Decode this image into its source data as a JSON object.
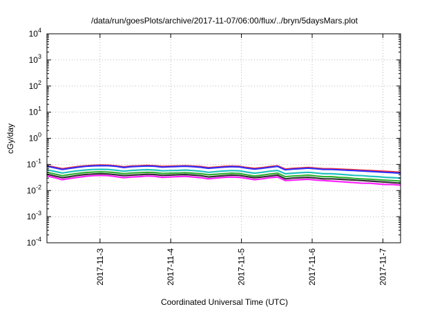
{
  "chart_data": {
    "type": "line",
    "title": "/data/run/goesPlots/archive/2017-11-07/06:00/flux/../bryn/5daysMars.plot",
    "xlabel": "Coordinated Universal Time (UTC)",
    "ylabel": "cGy/day",
    "yscale": "log",
    "ylim": [
      0.0001,
      10000
    ],
    "yticks": [
      {
        "value": 0.0001,
        "base": "10",
        "exp": "-4"
      },
      {
        "value": 0.001,
        "base": "10",
        "exp": "-3"
      },
      {
        "value": 0.01,
        "base": "10",
        "exp": "-2"
      },
      {
        "value": 0.1,
        "base": "10",
        "exp": "-1"
      },
      {
        "value": 1,
        "base": "10",
        "exp": "0"
      },
      {
        "value": 10,
        "base": "10",
        "exp": "1"
      },
      {
        "value": 100,
        "base": "10",
        "exp": "2"
      },
      {
        "value": 1000,
        "base": "10",
        "exp": "3"
      },
      {
        "value": 10000,
        "base": "10",
        "exp": "4"
      }
    ],
    "xlim": [
      "2017-11-02 06:00",
      "2017-11-07 06:00"
    ],
    "xticks": [
      "2017-11-3",
      "2017-11-4",
      "2017-11-5",
      "2017-11-6",
      "2017-11-7"
    ],
    "grid": true,
    "series": [
      {
        "color": "#ff2020",
        "values": [
          0.09,
          0.078,
          0.068,
          0.075,
          0.082,
          0.088,
          0.092,
          0.094,
          0.093,
          0.088,
          0.08,
          0.086,
          0.088,
          0.091,
          0.089,
          0.083,
          0.085,
          0.087,
          0.089,
          0.086,
          0.082,
          0.075,
          0.079,
          0.083,
          0.086,
          0.084,
          0.076,
          0.07,
          0.075,
          0.082,
          0.088,
          0.066,
          0.07,
          0.073,
          0.076,
          0.072,
          0.068,
          0.068,
          0.066,
          0.064,
          0.062,
          0.06,
          0.058,
          0.056,
          0.054,
          0.052,
          0.05
        ]
      },
      {
        "color": "#3030ff",
        "values": [
          0.085,
          0.074,
          0.064,
          0.071,
          0.078,
          0.084,
          0.088,
          0.09,
          0.089,
          0.084,
          0.076,
          0.082,
          0.084,
          0.087,
          0.085,
          0.079,
          0.081,
          0.083,
          0.085,
          0.082,
          0.078,
          0.071,
          0.075,
          0.079,
          0.082,
          0.08,
          0.072,
          0.066,
          0.071,
          0.078,
          0.084,
          0.062,
          0.066,
          0.069,
          0.072,
          0.068,
          0.064,
          0.064,
          0.062,
          0.06,
          0.058,
          0.056,
          0.054,
          0.052,
          0.05,
          0.048,
          0.046
        ]
      },
      {
        "color": "#20c0c0",
        "values": [
          0.062,
          0.054,
          0.047,
          0.052,
          0.057,
          0.061,
          0.064,
          0.065,
          0.064,
          0.06,
          0.055,
          0.059,
          0.061,
          0.063,
          0.061,
          0.057,
          0.058,
          0.059,
          0.061,
          0.058,
          0.055,
          0.05,
          0.053,
          0.056,
          0.058,
          0.057,
          0.051,
          0.046,
          0.05,
          0.055,
          0.059,
          0.044,
          0.046,
          0.048,
          0.05,
          0.047,
          0.044,
          0.044,
          0.042,
          0.04,
          0.038,
          0.037,
          0.035,
          0.034,
          0.032,
          0.031,
          0.03
        ]
      },
      {
        "color": "#30b030",
        "values": [
          0.05,
          0.043,
          0.037,
          0.041,
          0.045,
          0.049,
          0.051,
          0.052,
          0.051,
          0.048,
          0.044,
          0.047,
          0.048,
          0.05,
          0.049,
          0.045,
          0.046,
          0.047,
          0.048,
          0.046,
          0.044,
          0.04,
          0.042,
          0.044,
          0.046,
          0.045,
          0.04,
          0.036,
          0.039,
          0.043,
          0.046,
          0.034,
          0.036,
          0.037,
          0.039,
          0.036,
          0.034,
          0.034,
          0.032,
          0.031,
          0.029,
          0.028,
          0.027,
          0.026,
          0.025,
          0.024,
          0.023
        ]
      },
      {
        "color": "#303030",
        "values": [
          0.042,
          0.036,
          0.031,
          0.034,
          0.038,
          0.041,
          0.043,
          0.044,
          0.043,
          0.04,
          0.037,
          0.039,
          0.04,
          0.042,
          0.041,
          0.038,
          0.039,
          0.04,
          0.041,
          0.039,
          0.037,
          0.033,
          0.035,
          0.037,
          0.039,
          0.038,
          0.034,
          0.031,
          0.033,
          0.036,
          0.039,
          0.028,
          0.03,
          0.031,
          0.032,
          0.03,
          0.028,
          0.028,
          0.027,
          0.026,
          0.025,
          0.024,
          0.023,
          0.022,
          0.021,
          0.02,
          0.019
        ]
      },
      {
        "color": "#ff20ff",
        "values": [
          0.036,
          0.031,
          0.026,
          0.029,
          0.032,
          0.035,
          0.037,
          0.038,
          0.037,
          0.034,
          0.031,
          0.033,
          0.034,
          0.036,
          0.035,
          0.032,
          0.033,
          0.034,
          0.035,
          0.033,
          0.031,
          0.028,
          0.03,
          0.032,
          0.033,
          0.032,
          0.029,
          0.026,
          0.028,
          0.031,
          0.033,
          0.024,
          0.025,
          0.026,
          0.027,
          0.025,
          0.024,
          0.023,
          0.022,
          0.021,
          0.02,
          0.019,
          0.019,
          0.018,
          0.017,
          0.017,
          0.016
        ]
      }
    ]
  }
}
